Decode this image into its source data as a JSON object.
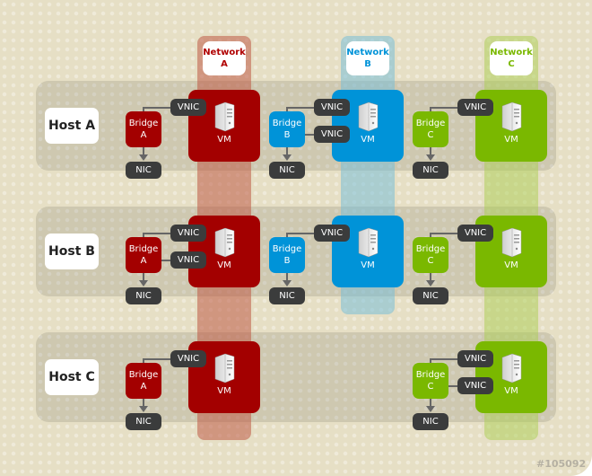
{
  "colors": {
    "A": "#a30000",
    "B": "#0093d8",
    "C": "#7ab800",
    "colA": "rgba(190,90,70,0.55)",
    "colB": "rgba(120,190,215,0.55)",
    "colC": "rgba(170,205,80,0.5)"
  },
  "networks": [
    {
      "id": "A",
      "title": "Network",
      "letter": "A",
      "label_color": "#b00000"
    },
    {
      "id": "B",
      "title": "Network",
      "letter": "B",
      "label_color": "#0093d8"
    },
    {
      "id": "C",
      "title": "Network",
      "letter": "C",
      "label_color": "#7ab800"
    }
  ],
  "labels": {
    "vm": "VM",
    "vnic": "VNIC",
    "nic": "NIC",
    "bridge": "Bridge"
  },
  "hosts": [
    {
      "name": "Host A",
      "nets": [
        {
          "id": "A",
          "vnics": 1
        },
        {
          "id": "B",
          "vnics": 2
        },
        {
          "id": "C",
          "vnics": 1
        }
      ]
    },
    {
      "name": "Host B",
      "nets": [
        {
          "id": "A",
          "vnics": 2
        },
        {
          "id": "B",
          "vnics": 1
        },
        {
          "id": "C",
          "vnics": 1
        }
      ]
    },
    {
      "name": "Host C",
      "nets": [
        {
          "id": "A",
          "vnics": 1
        },
        {
          "id": "C",
          "vnics": 2
        }
      ]
    }
  ],
  "footer_id": "#105092",
  "icons": {
    "vm": "server-icon"
  }
}
